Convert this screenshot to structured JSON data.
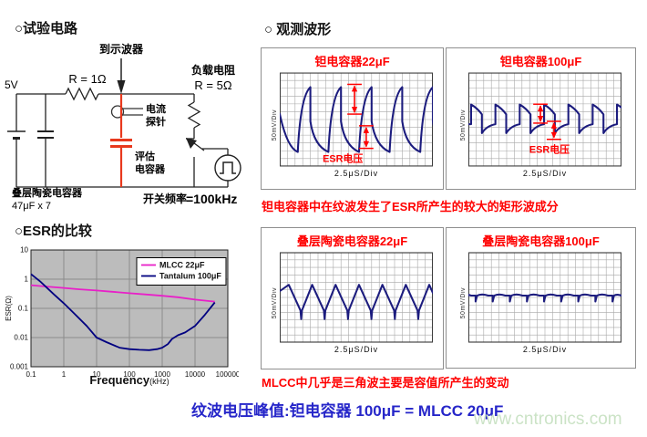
{
  "colors": {
    "accent_red": "#ff0000",
    "trace_navy": "#1c1c7e",
    "mlcc_magenta": "#e820c8",
    "tantalum_navy": "#000080",
    "summary_blue": "#2626c9",
    "watermark_green": "#cbe3c6",
    "circuit_red": "#e8391d",
    "plot_gray": "#bcbcbc"
  },
  "circuit": {
    "title": "○试验电路",
    "to_scope": "到示波器",
    "supply": "5V",
    "r1": "R = 1Ω",
    "load_name": "负载电阻",
    "load_value": "R = 5Ω",
    "probe": [
      "电流",
      "探针"
    ],
    "eval_cap": [
      "评估",
      "电容器"
    ],
    "bank": [
      "叠层陶瓷电容器",
      "47μF x 7"
    ],
    "freq_label": "开关频率",
    "freq_value": "=100kHz"
  },
  "esr": {
    "title": "○ESR的比较",
    "ylabel": "ESR(Ω)",
    "xlabel_main": "Frequency",
    "xlabel_unit": "(kHz)"
  },
  "waveforms": {
    "header": "○ 观测波形",
    "caption_top": "钽电容器中在纹波发生了ESR所产生的较大的矩形波成分",
    "caption_bottom": "MLCC中几乎是三角波主要是容值所产生的变动",
    "summary": "纹波电压峰值:钽电容器 100μF = MLCC 20μF",
    "watermark": "www.cntronics.com",
    "panels": [
      {
        "title": "钽电容器22μF",
        "v_scale": "50mV/Div",
        "t_scale": "2.5μS/Div",
        "esr_label": "ESR电压",
        "wave": "tant22"
      },
      {
        "title": "钽电容器100μF",
        "v_scale": "50mV/Div",
        "t_scale": "2.5μS/Div",
        "esr_label": "ESR电压",
        "wave": "tant100"
      },
      {
        "title": "叠层陶瓷电容器22μF",
        "v_scale": "50mV/Div",
        "t_scale": "2.5μS/Div",
        "esr_label": "",
        "wave": "mlcc22"
      },
      {
        "title": "叠层陶瓷电容器100μF",
        "v_scale": "50mV/Div",
        "t_scale": "2.5μS/Div",
        "esr_label": "",
        "wave": "mlcc100"
      }
    ]
  },
  "chart_data": [
    {
      "type": "line",
      "title": "ESR的比较",
      "xlabel": "Frequency(kHz)",
      "ylabel": "ESR(Ω)",
      "xscale": "log",
      "yscale": "log",
      "xlim": [
        0.1,
        100000
      ],
      "ylim": [
        0.001,
        10
      ],
      "x_ticks": [
        "0.1",
        "1",
        "10",
        "100",
        "1000",
        "10000",
        "100000"
      ],
      "y_ticks": [
        "10",
        "1",
        "0.1",
        "0.01",
        "0.001"
      ],
      "grid": true,
      "legend_position": "top-right",
      "series": [
        {
          "name": "MLCC 22μF",
          "color": "#e820c8",
          "x": [
            0.1,
            0.3,
            1,
            3,
            10,
            30,
            100,
            300,
            1000,
            3000,
            10000,
            40000
          ],
          "y": [
            0.62,
            0.56,
            0.5,
            0.45,
            0.41,
            0.37,
            0.33,
            0.3,
            0.27,
            0.24,
            0.2,
            0.17
          ]
        },
        {
          "name": "Tantalum 100μF",
          "color": "#000080",
          "x": [
            0.1,
            0.2,
            0.5,
            1,
            2,
            5,
            10,
            20,
            50,
            100,
            200,
            400,
            700,
            1000,
            1500,
            2000,
            3000,
            5000,
            10000,
            20000,
            40000
          ],
          "y": [
            1.5,
            0.8,
            0.3,
            0.15,
            0.07,
            0.025,
            0.01,
            0.007,
            0.0045,
            0.004,
            0.0038,
            0.0037,
            0.004,
            0.0045,
            0.006,
            0.009,
            0.012,
            0.015,
            0.025,
            0.06,
            0.16
          ]
        }
      ]
    },
    {
      "type": "line",
      "panel": "钽电容器22μF",
      "waveform": "sawtooth ripple with large vertical ESR step",
      "v_scale": "50mV/Div",
      "t_scale": "2.5μS/Div",
      "cycles_visible": 5,
      "peak_to_peak_div": 3.5
    },
    {
      "type": "line",
      "panel": "钽电容器100μF",
      "waveform": "small square-edged ripple caused by ESR",
      "v_scale": "50mV/Div",
      "t_scale": "2.5μS/Div",
      "cycles_visible": 6,
      "peak_to_peak_div": 1.5
    },
    {
      "type": "line",
      "panel": "叠层陶瓷电容器22μF",
      "waveform": "triangular ripple with narrow switching spikes",
      "v_scale": "50mV/Div",
      "t_scale": "2.5μS/Div",
      "cycles_visible": 7,
      "peak_to_peak_div": 1.5
    },
    {
      "type": "line",
      "panel": "叠层陶瓷电容器100μF",
      "waveform": "nearly flat trace with tiny switching spikes",
      "v_scale": "50mV/Div",
      "t_scale": "2.5μS/Div",
      "cycles_visible": 9,
      "peak_to_peak_div": 0.3
    }
  ]
}
